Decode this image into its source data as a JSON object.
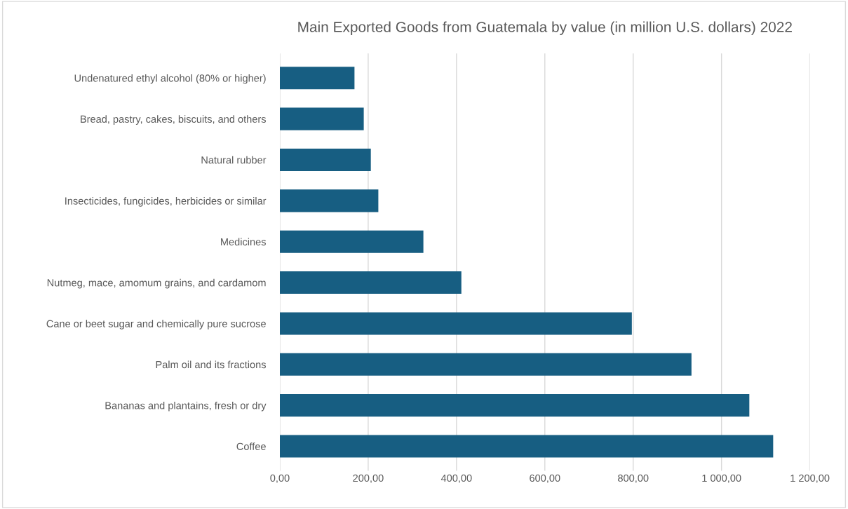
{
  "chart_data": {
    "type": "bar",
    "orientation": "horizontal",
    "title": "Main Exported Goods from Guatemala by value (in million U.S. dollars) 2022",
    "categories": [
      "Undenatured ethyl alcohol (80% or higher)",
      "Bread, pastry, cakes, biscuits, and others",
      "Natural rubber",
      "Insecticides, fungicides, herbicides or similar",
      "Medicines",
      "Nutmeg, mace, amomum grains, and cardamom",
      "Cane or beet sugar and chemically pure sucrose",
      "Palm oil and its fractions",
      "Bananas and plantains, fresh or dry",
      "Coffee"
    ],
    "values": [
      169,
      190,
      206,
      223,
      325,
      411,
      797,
      932,
      1063,
      1117
    ],
    "color": "#175e82",
    "xlim": [
      0,
      1200
    ],
    "xticks": [
      {
        "value": 0,
        "label": "0,00"
      },
      {
        "value": 200,
        "label": "200,00"
      },
      {
        "value": 400,
        "label": "400,00"
      },
      {
        "value": 600,
        "label": "600,00"
      },
      {
        "value": 800,
        "label": "800,00"
      },
      {
        "value": 1000,
        "label": "1 000,00"
      },
      {
        "value": 1200,
        "label": "1 200,00"
      }
    ],
    "grid": "x",
    "legend": false
  }
}
